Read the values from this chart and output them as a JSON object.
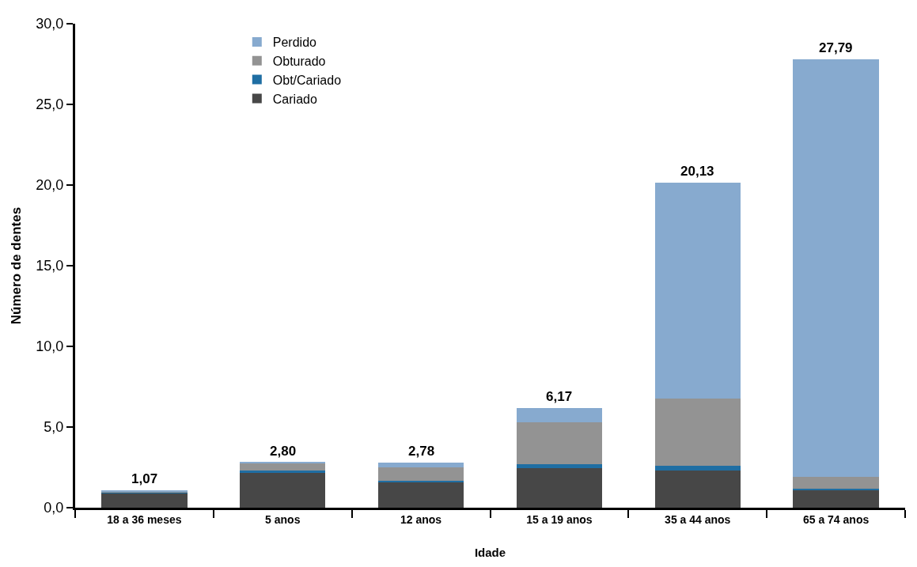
{
  "chart_data": {
    "type": "bar",
    "stacked": true,
    "xlabel": "Idade",
    "ylabel": "Número de dentes",
    "categories": [
      "18 a 36 meses",
      "5 anos",
      "12 anos",
      "15 a 19 anos",
      "35 a 44 anos",
      "65 a 74 anos"
    ],
    "series": [
      {
        "name": "Cariado",
        "color": "#474747",
        "values": [
          0.92,
          2.2,
          1.6,
          2.45,
          2.3,
          1.08
        ]
      },
      {
        "name": "Obt/Cariado",
        "color": "#1f6ea3",
        "values": [
          0.02,
          0.08,
          0.08,
          0.25,
          0.28,
          0.12
        ]
      },
      {
        "name": "Obturado",
        "color": "#939393",
        "values": [
          0.03,
          0.49,
          0.8,
          2.6,
          4.2,
          0.7
        ]
      },
      {
        "name": "Perdido",
        "color": "#87aacf",
        "values": [
          0.1,
          0.03,
          0.3,
          0.87,
          13.35,
          25.89
        ]
      }
    ],
    "totals": [
      "1,07",
      "2,80",
      "2,78",
      "6,17",
      "20,13",
      "27,79"
    ],
    "ylim": [
      0,
      30
    ],
    "yticks": [
      {
        "value": 0,
        "label": "0,0"
      },
      {
        "value": 5,
        "label": "5,0"
      },
      {
        "value": 10,
        "label": "10,0"
      },
      {
        "value": 15,
        "label": "15,0"
      },
      {
        "value": 20,
        "label": "20,0"
      },
      {
        "value": 25,
        "label": "25,0"
      },
      {
        "value": 30,
        "label": "30,0"
      }
    ],
    "legend": "top left"
  }
}
